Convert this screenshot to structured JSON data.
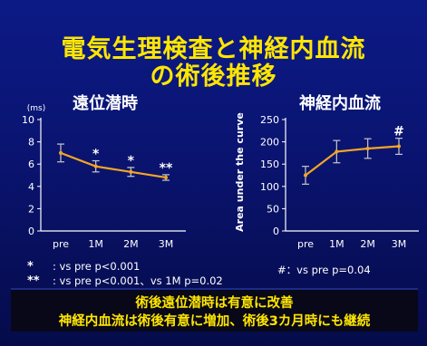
{
  "slide": {
    "title_line1": "電気生理検査と神経内血流",
    "title_line2": "の術後推移"
  },
  "colors": {
    "background": "#0a1470",
    "title": "#ffe600",
    "line": "#f5a623",
    "text": "#ffffff",
    "banner_bg": "#080818"
  },
  "chart_data": [
    {
      "type": "line",
      "title": "遠位潜時",
      "xlabel": "",
      "ylabel": "(ms)",
      "categories": [
        "pre",
        "1M",
        "2M",
        "3M"
      ],
      "values": [
        7.0,
        5.8,
        5.3,
        4.8
      ],
      "error": [
        0.8,
        0.5,
        0.4,
        0.25
      ],
      "significance": [
        "",
        "*",
        "*",
        "**"
      ],
      "ylim": [
        0,
        10
      ],
      "yticks": [
        0,
        2,
        4,
        6,
        8,
        10
      ],
      "grid": false,
      "legend": "none"
    },
    {
      "type": "line",
      "title": "神経内血流",
      "xlabel": "",
      "ylabel": "Area under the curve",
      "categories": [
        "pre",
        "1M",
        "2M",
        "3M"
      ],
      "values": [
        125,
        178,
        185,
        190
      ],
      "error": [
        20,
        25,
        22,
        18
      ],
      "significance": [
        "",
        "",
        "",
        "#"
      ],
      "ylim": [
        0,
        250
      ],
      "yticks": [
        0,
        50,
        100,
        150,
        200,
        250
      ],
      "grid": false,
      "legend": "none"
    }
  ],
  "notes": {
    "n1_symbol": "*",
    "n1_text": ": vs pre p<0.001",
    "n2_symbol": "**",
    "n2_text": ": vs pre p<0.001、vs 1M p=0.02",
    "n3_text": "#：vs pre p=0.04"
  },
  "banner": {
    "line1": "術後遠位潜時は有意に改善",
    "line2": "神経内血流は術後有意に増加、術後3カ月時にも継続"
  }
}
